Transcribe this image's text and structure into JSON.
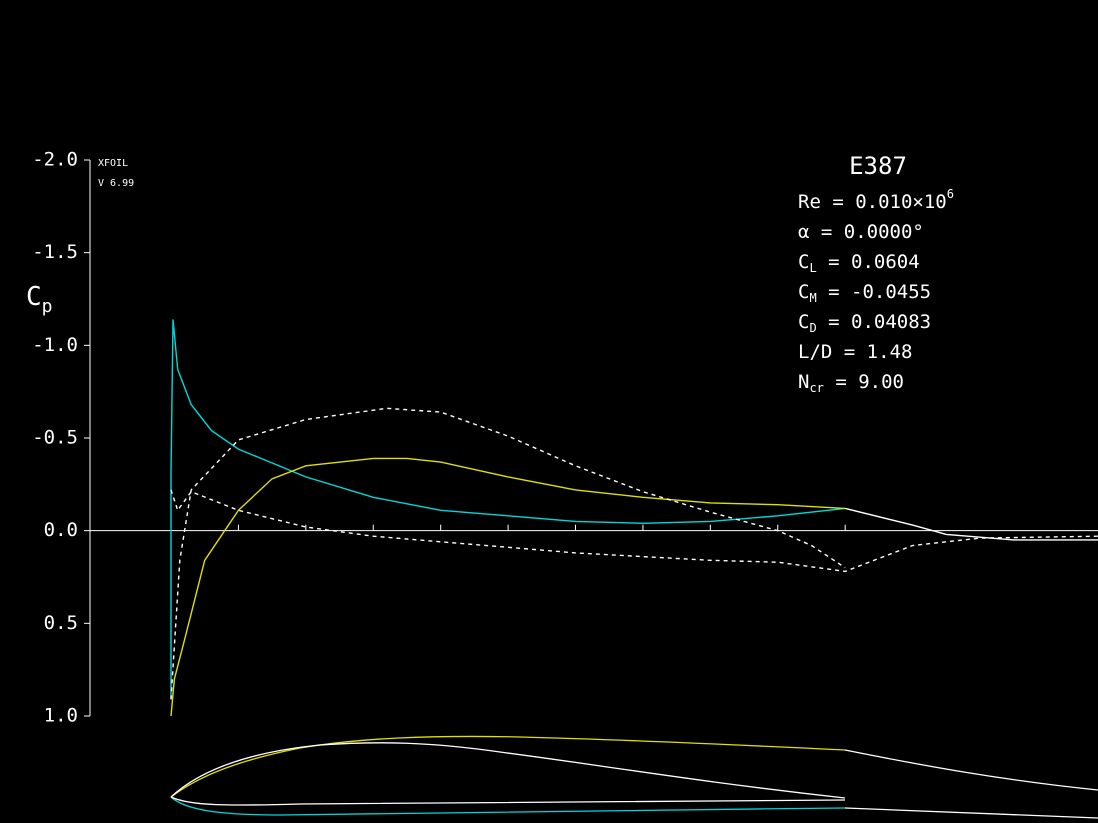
{
  "chart_data": {
    "type": "line",
    "ylabel": {
      "main": "C",
      "sub": "p"
    },
    "program": "XFOIL",
    "version": "V 6.99",
    "title": "E387",
    "info": [
      {
        "label": "Re",
        "text": " = 0.010×10",
        "sup": "6"
      },
      {
        "label": "α",
        "text": "  = 0.0000°"
      },
      {
        "label": "C",
        "sub": "L",
        "text": " = 0.0604"
      },
      {
        "label": "C",
        "sub": "M",
        "text": " = -0.0455"
      },
      {
        "label": "C",
        "sub": "D",
        "text": " = 0.04083"
      },
      {
        "label": "L/D",
        "text": " = 1.48"
      },
      {
        "label": "N",
        "sub": "cr",
        "text": " = 9.00"
      }
    ],
    "xlim": [
      0,
      1.375
    ],
    "xticks": [
      0.1,
      0.2,
      0.3,
      0.4,
      0.5,
      0.6,
      0.7,
      0.8,
      0.9,
      1.0
    ],
    "ylim": [
      -2.0,
      1.0
    ],
    "yticks": [
      {
        "value": -2.0,
        "label": "-2.0"
      },
      {
        "value": -1.5,
        "label": "-1.5"
      },
      {
        "value": -1.0,
        "label": "-1.0"
      },
      {
        "value": -0.5,
        "label": "-0.5"
      },
      {
        "value": 0,
        "label": "0.0"
      },
      {
        "value": 0.5,
        "label": "0.5"
      },
      {
        "value": 1.0,
        "label": "1.0"
      }
    ],
    "inverted_y": true,
    "series": [
      {
        "color": "#00d8d8",
        "style": "solid",
        "x": [
          0,
          0,
          0.003,
          0.01,
          0.03,
          0.06,
          0.1,
          0.2,
          0.3,
          0.4,
          0.5,
          0.6,
          0.7,
          0.8,
          0.9,
          1.0
        ],
        "values": [
          0.91,
          -0.3,
          -1.14,
          -0.87,
          -0.68,
          -0.54,
          -0.44,
          -0.29,
          -0.18,
          -0.11,
          -0.08,
          -0.05,
          -0.04,
          -0.05,
          -0.08,
          -0.12
        ]
      },
      {
        "color": "#e0e000",
        "style": "solid",
        "x": [
          0,
          0.005,
          0.02,
          0.05,
          0.1,
          0.15,
          0.2,
          0.3,
          0.35,
          0.4,
          0.5,
          0.6,
          0.7,
          0.8,
          0.9,
          1.0
        ],
        "values": [
          1.0,
          0.8,
          0.59,
          0.16,
          -0.11,
          -0.28,
          -0.35,
          -0.39,
          -0.39,
          -0.37,
          -0.29,
          -0.22,
          -0.18,
          -0.15,
          -0.14,
          -0.12
        ]
      },
      {
        "color": "#ffffff",
        "style": "solid",
        "x": [
          1.0,
          1.1,
          1.15,
          1.25,
          1.375
        ],
        "values": [
          -0.12,
          -0.03,
          0.02,
          0.05,
          0.05
        ]
      },
      {
        "color": "#ffffff",
        "style": "dashed",
        "x": [
          0,
          0.013,
          0.03,
          0.1,
          0.2,
          0.3,
          0.32,
          0.4,
          0.5,
          0.6,
          0.7,
          0.8,
          0.9,
          0.95,
          1.0
        ],
        "values": [
          0.91,
          0.16,
          -0.22,
          -0.49,
          -0.6,
          -0.65,
          -0.66,
          -0.64,
          -0.51,
          -0.35,
          -0.21,
          -0.1,
          0.0,
          0.08,
          0.2
        ]
      },
      {
        "color": "#ffffff",
        "style": "dashed",
        "x": [
          0,
          0.01,
          0.03,
          0.1,
          0.2,
          0.3,
          0.4,
          0.5,
          0.6,
          0.7,
          0.8,
          0.9,
          1.0,
          1.1,
          1.2,
          1.375
        ],
        "values": [
          -0.22,
          -0.11,
          -0.21,
          -0.11,
          -0.02,
          0.03,
          0.06,
          0.09,
          0.12,
          0.14,
          0.16,
          0.17,
          0.22,
          0.08,
          0.04,
          0.03
        ]
      }
    ]
  }
}
